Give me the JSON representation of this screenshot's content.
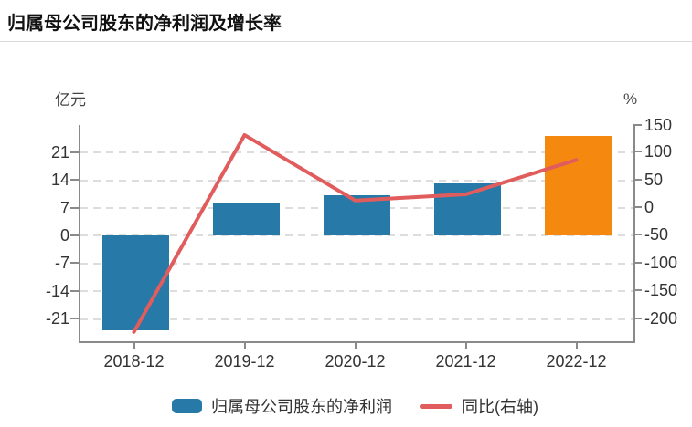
{
  "page": {
    "title": "归属母公司股东的净利润及增长率"
  },
  "chart_data": {
    "type": "combo_bar_line",
    "title": "归属母公司股东的净利润及增长率",
    "categories": [
      "2018-12",
      "2019-12",
      "2020-12",
      "2021-12",
      "2022-12"
    ],
    "series": [
      {
        "name": "归属母公司股东的净利润",
        "type": "bar",
        "y_axis": "left",
        "unit": "亿元",
        "values": [
          -24,
          8,
          10.2,
          13.2,
          25.1
        ],
        "bar_colors": [
          "#2779A8",
          "#2779A8",
          "#2779A8",
          "#2779A8",
          "#F5890F"
        ]
      },
      {
        "name": "同比(右轴)",
        "type": "line",
        "y_axis": "right",
        "unit": "%",
        "values": [
          -225,
          130,
          12,
          23,
          85
        ],
        "color": "#E15C5C"
      }
    ],
    "left_axis": {
      "unit": "亿元",
      "ticks": [
        21,
        14,
        7,
        0,
        -7,
        -14,
        -21
      ]
    },
    "right_axis": {
      "unit": "%",
      "ticks": [
        150,
        100,
        50,
        0,
        -50,
        -100,
        -150,
        -200
      ]
    },
    "grid": "horizontal dashed",
    "legend_position": "bottom"
  },
  "colors": {
    "bar": "#2779A8",
    "bar_highlight": "#F5890F",
    "line": "#E15C5C",
    "axis": "#8A8A8A",
    "gridline": "#DDDDDD",
    "text": "#333333",
    "title": "#111111",
    "divider": "#D9D9D9"
  }
}
